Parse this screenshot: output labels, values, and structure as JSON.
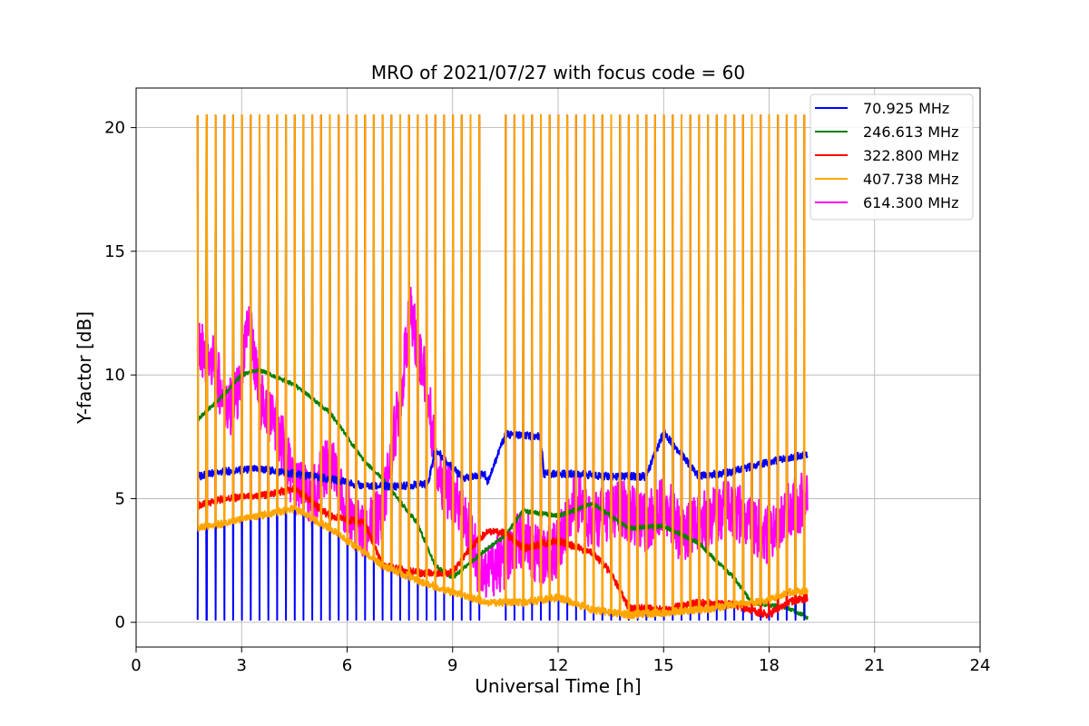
{
  "chart_data": {
    "type": "line",
    "title": "MRO of 2021/07/27 with focus code = 60",
    "xlabel": "Universal Time [h]",
    "ylabel": "Y-factor [dB]",
    "xlim": [
      0,
      24
    ],
    "ylim": [
      -1,
      21.6
    ],
    "xticks": [
      0,
      3,
      6,
      9,
      12,
      15,
      18,
      21,
      24
    ],
    "yticks": [
      0,
      5,
      10,
      15,
      20
    ],
    "grid": true,
    "legend_position": "top-right",
    "calibration_pulses": {
      "start_h": 1.75,
      "period_h": 0.25,
      "end_h": 19.1,
      "gap_h": [
        9.85,
        10.45
      ],
      "peak_db": 20.5
    },
    "series": [
      {
        "name": "  70.925 MHz",
        "color": "#0000ff",
        "x": [
          1.75,
          2.5,
          3.5,
          4.5,
          5.5,
          6.5,
          7.5,
          8.3,
          8.5,
          9.3,
          9.9,
          10.0,
          10.5,
          11.5,
          11.6,
          12.5,
          13.5,
          14.5,
          15.0,
          16.0,
          17.0,
          18.0,
          19.1
        ],
        "values": [
          5.9,
          6.1,
          6.2,
          6.0,
          5.8,
          5.5,
          5.5,
          5.6,
          7.0,
          5.8,
          6.0,
          5.7,
          7.6,
          7.5,
          6.0,
          6.0,
          5.9,
          5.9,
          7.7,
          5.9,
          6.1,
          6.5,
          6.8
        ]
      },
      {
        "name": "246.613 MHz",
        "color": "#008000",
        "x": [
          1.75,
          2.5,
          3.0,
          3.5,
          4.5,
          5.5,
          6.5,
          7.0,
          8.0,
          8.5,
          9.0,
          9.5,
          10.0,
          10.5,
          11.0,
          12.0,
          13.0,
          14.0,
          15.0,
          16.0,
          17.0,
          17.5,
          18.0,
          18.5,
          19.1
        ],
        "values": [
          8.2,
          9.2,
          10.0,
          10.2,
          9.6,
          8.5,
          6.5,
          5.8,
          4.0,
          2.3,
          1.8,
          2.4,
          3.0,
          3.5,
          4.5,
          4.3,
          4.8,
          3.8,
          3.9,
          3.2,
          1.8,
          0.8,
          0.7,
          0.6,
          0.2
        ]
      },
      {
        "name": "322.800 MHz",
        "color": "#ff0000",
        "x": [
          1.75,
          2.5,
          3.5,
          4.5,
          5.5,
          6.5,
          7.0,
          8.0,
          9.0,
          9.5,
          10.0,
          10.5,
          11.0,
          12.0,
          13.0,
          13.5,
          14.0,
          15.0,
          16.0,
          17.0,
          17.7,
          18.0,
          18.5,
          19.1
        ],
        "values": [
          4.7,
          5.0,
          5.1,
          5.4,
          4.3,
          4.0,
          2.3,
          2.0,
          2.0,
          3.0,
          3.7,
          3.6,
          3.0,
          3.3,
          2.8,
          2.0,
          0.6,
          0.5,
          0.8,
          0.7,
          0.4,
          0.3,
          0.8,
          1.0
        ]
      },
      {
        "name": "407.738 MHz",
        "color": "#ffa500",
        "x": [
          1.75,
          2.5,
          3.5,
          4.5,
          5.5,
          6.5,
          7.0,
          8.0,
          9.0,
          10.0,
          11.0,
          12.0,
          13.0,
          14.0,
          15.0,
          16.0,
          17.0,
          18.0,
          18.5,
          19.1
        ],
        "values": [
          3.8,
          4.0,
          4.3,
          4.6,
          3.8,
          2.8,
          2.3,
          1.7,
          1.2,
          0.8,
          0.8,
          1.0,
          0.5,
          0.3,
          0.4,
          0.5,
          0.7,
          0.9,
          1.2,
          1.3
        ]
      },
      {
        "name": "614.300 MHz",
        "color": "#ff00ff",
        "x": [
          1.75,
          2.2,
          2.6,
          3.0,
          3.2,
          3.5,
          4.0,
          4.5,
          5.0,
          5.5,
          6.0,
          6.5,
          7.0,
          7.5,
          7.8,
          8.2,
          8.6,
          9.0,
          9.4,
          9.8,
          10.5,
          11.0,
          11.5,
          12.0,
          12.5,
          13.0,
          13.5,
          14.0,
          14.5,
          15.0,
          15.5,
          16.0,
          16.5,
          17.0,
          17.5,
          18.0,
          18.5,
          19.1
        ],
        "values": [
          11.0,
          10.5,
          8.5,
          9.5,
          12.5,
          9.0,
          8.0,
          5.5,
          5.0,
          6.5,
          4.5,
          3.5,
          4.5,
          9.0,
          12.5,
          10.0,
          6.0,
          5.0,
          4.0,
          2.0,
          2.5,
          3.5,
          2.5,
          3.0,
          5.0,
          4.0,
          4.5,
          4.5,
          4.0,
          5.0,
          3.5,
          4.0,
          4.5,
          4.5,
          4.0,
          3.5,
          4.5,
          5.0
        ]
      }
    ]
  }
}
